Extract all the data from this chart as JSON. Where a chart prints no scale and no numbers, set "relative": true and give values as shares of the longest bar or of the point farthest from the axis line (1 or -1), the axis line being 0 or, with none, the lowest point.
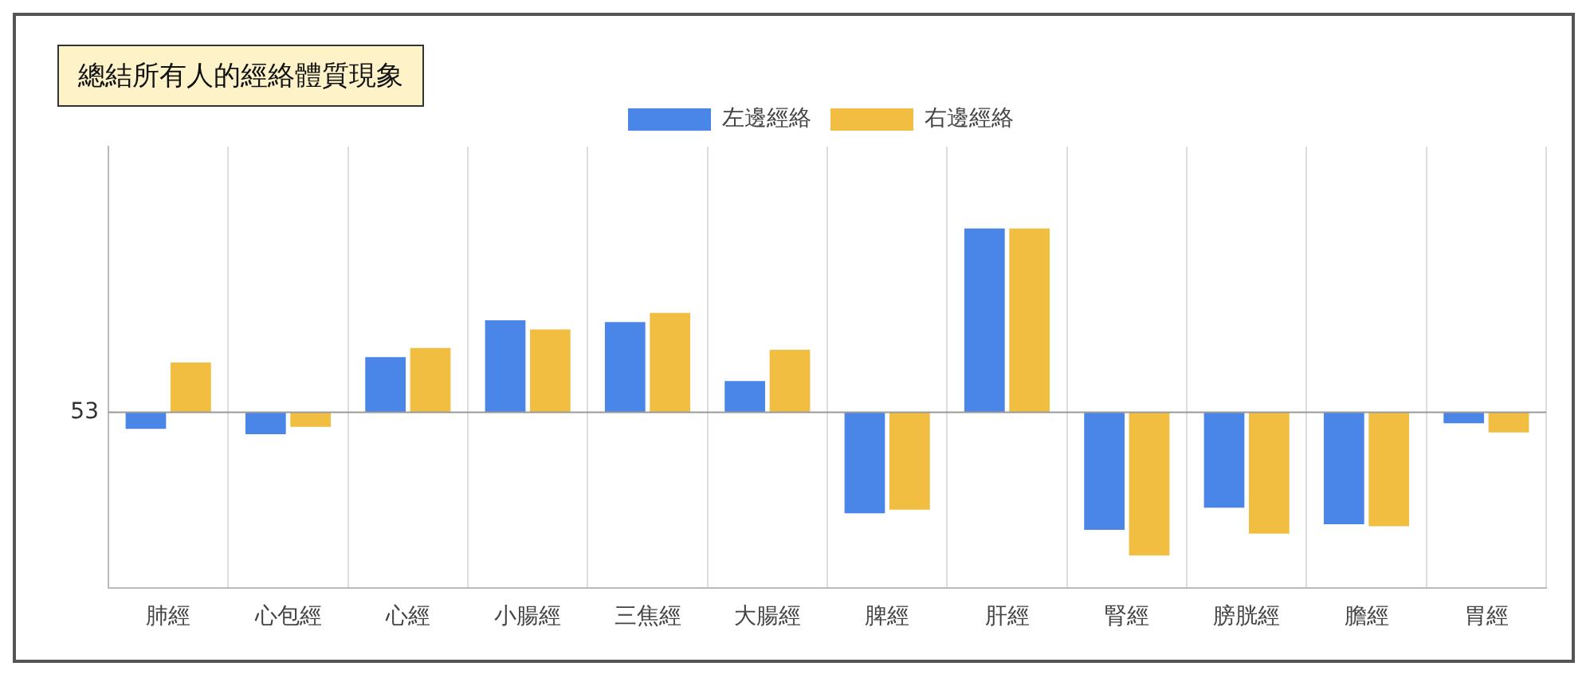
{
  "chart_data": {
    "type": "bar",
    "title": "總結所有人的經絡體質現象",
    "relative": true,
    "legend": "top",
    "grid": "x",
    "categories": [
      "肺經",
      "心包經",
      "心經",
      "小腸經",
      "三焦經",
      "大腸經",
      "脾經",
      "肝經",
      "腎經",
      "膀胱經",
      "膽經",
      "胃經"
    ],
    "series": [
      {
        "name": "左邊經絡",
        "color": "#4a86e8",
        "values": [
          -0.09,
          -0.12,
          0.3,
          0.5,
          0.49,
          0.17,
          -0.55,
          1,
          -0.64,
          -0.52,
          -0.61,
          -0.06
        ]
      },
      {
        "name": "右邊經絡",
        "color": "#f1be42",
        "values": [
          0.27,
          -0.08,
          0.35,
          0.45,
          0.54,
          0.34,
          -0.53,
          1,
          -0.78,
          -0.66,
          -0.62,
          -0.11
        ]
      }
    ],
    "ref_lines": [
      {
        "axis": "y",
        "value": 0,
        "color": "#999999"
      }
    ],
    "annotations": [
      "53"
    ]
  }
}
